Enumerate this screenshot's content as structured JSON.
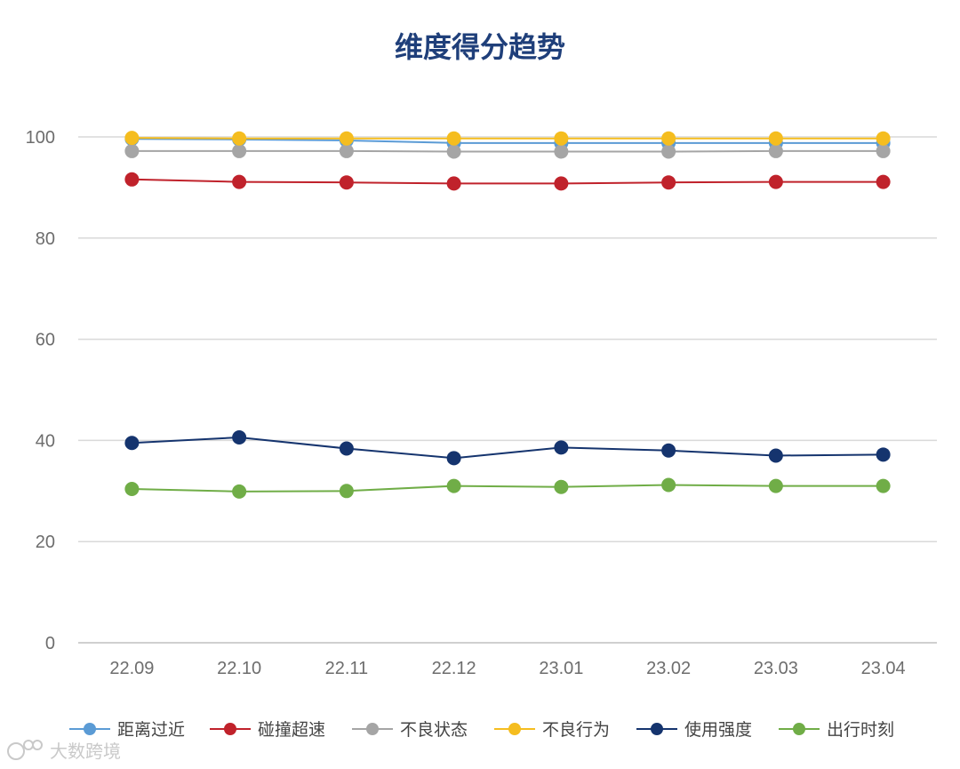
{
  "chart_data": {
    "type": "line",
    "title": "维度得分趋势",
    "categories": [
      "22.09",
      "22.10",
      "22.11",
      "22.12",
      "23.01",
      "23.02",
      "23.03",
      "23.04"
    ],
    "ylim": [
      0,
      100
    ],
    "yticks": [
      0,
      20,
      40,
      60,
      80,
      100
    ],
    "grid": true,
    "legend": "bottom",
    "series": [
      {
        "name": "距离过近",
        "color": "#5b9bd5",
        "values": [
          99.6,
          99.5,
          99.3,
          98.8,
          98.8,
          98.8,
          98.8,
          98.8
        ]
      },
      {
        "name": "碰撞超速",
        "color": "#c0222b",
        "values": [
          91.6,
          91.1,
          91.0,
          90.8,
          90.8,
          91.0,
          91.1,
          91.1
        ]
      },
      {
        "name": "不良状态",
        "color": "#a5a5a5",
        "values": [
          97.2,
          97.2,
          97.2,
          97.1,
          97.1,
          97.1,
          97.2,
          97.2
        ]
      },
      {
        "name": "不良行为",
        "color": "#f5bd1f",
        "values": [
          99.8,
          99.7,
          99.7,
          99.7,
          99.7,
          99.7,
          99.7,
          99.7
        ]
      },
      {
        "name": "使用强度",
        "color": "#15346e",
        "values": [
          39.5,
          40.6,
          38.4,
          36.5,
          38.6,
          38.0,
          37.0,
          37.2
        ]
      },
      {
        "name": "出行时刻",
        "color": "#70ad47",
        "values": [
          30.4,
          29.9,
          30.0,
          31.0,
          30.8,
          31.2,
          31.0,
          31.0
        ]
      }
    ]
  },
  "watermark": "大数跨境"
}
